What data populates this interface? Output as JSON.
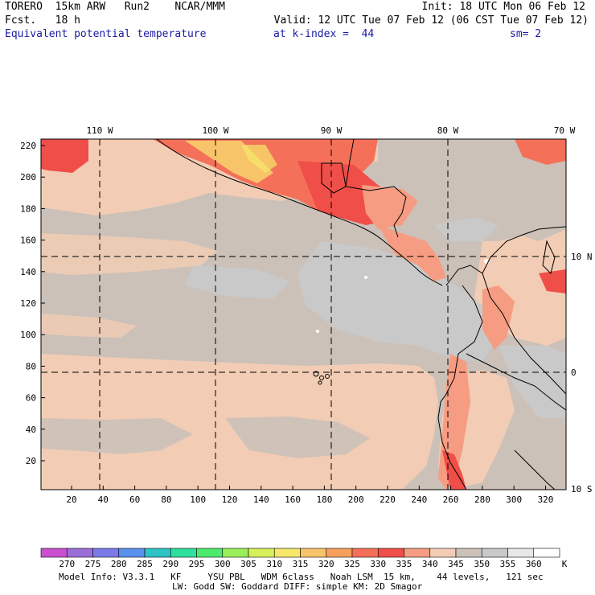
{
  "header": {
    "line1_left": "TORERO  15km ARW   Run2    NCAR/MMM",
    "line1_right": "Init: 18 UTC Mon 06 Feb 12",
    "line2_left": "Fcst.   18 h",
    "line2_right": "Valid: 12 UTC Tue 07 Feb 12 (06 CST Tue 07 Feb 12)",
    "field_name": "Equivalent potential temperature",
    "level_text": "at k-index =  44",
    "smoothing": "sm= 2"
  },
  "map": {
    "lon_labels": [
      "110 W",
      "100 W",
      "90 W",
      "80 W",
      "70 W"
    ],
    "lat_labels": [
      "10 N",
      "0",
      "10 S"
    ],
    "y_ticks": [
      "220",
      "200",
      "180",
      "160",
      "140",
      "120",
      "100",
      "80",
      "60",
      "40",
      "20"
    ],
    "x_ticks": [
      "20",
      "40",
      "60",
      "80",
      "100",
      "120",
      "140",
      "160",
      "180",
      "200",
      "220",
      "240",
      "260",
      "280",
      "300",
      "320"
    ]
  },
  "colorbar": {
    "values": [
      "270",
      "275",
      "280",
      "285",
      "290",
      "295",
      "300",
      "305",
      "310",
      "315",
      "320",
      "325",
      "330",
      "335",
      "340",
      "345",
      "350",
      "355",
      "360"
    ],
    "unit": "K",
    "colors": [
      "#c94fcf",
      "#9a6ed8",
      "#7a7ae8",
      "#5a90ee",
      "#2ec4c4",
      "#2ee0a0",
      "#4eea6e",
      "#9aee5a",
      "#d6f05a",
      "#f6e86a",
      "#f8c46a",
      "#f6a05e",
      "#f47058",
      "#f04e48",
      "#f69c82",
      "#f2ccb4",
      "#cbc1b9",
      "#c9c9c9",
      "#e8e8e8",
      "#ffffff"
    ]
  },
  "footer": {
    "line1": "Model Info: V3.3.1   KF     YSU PBL   WDM 6class   Noah LSM  15 km,    44 levels,   121 sec",
    "line2": "LW: Godd SW: Goddard DIFF: simple KM: 2D Smagor"
  }
}
